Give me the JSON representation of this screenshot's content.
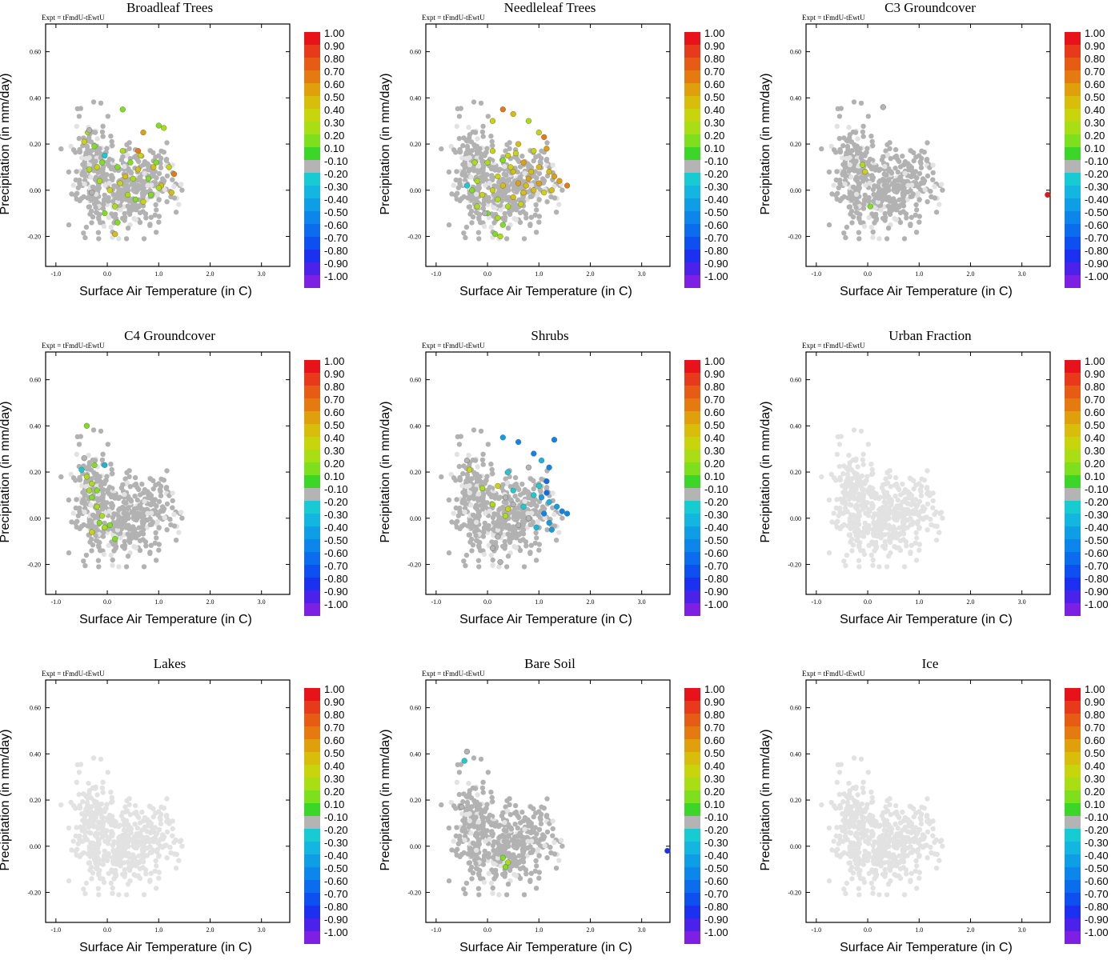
{
  "figure": {
    "experiment_label": "Expt = tFmdU-tEwtU",
    "xlabel": "Surface Air Temperature (in C)",
    "ylabel": "Precipitation (in mm/day)",
    "xticks": [
      {
        "value": -1.0,
        "label": "-1.0"
      },
      {
        "value": 0.0,
        "label": "0.0"
      },
      {
        "value": 1.0,
        "label": "1.0"
      },
      {
        "value": 2.0,
        "label": "2.0"
      },
      {
        "value": 3.0,
        "label": "3.0"
      }
    ],
    "yticks": [
      {
        "value": -0.2,
        "label": "-0.20"
      },
      {
        "value": 0.0,
        "label": "0.00"
      },
      {
        "value": 0.2,
        "label": "0.20"
      },
      {
        "value": 0.4,
        "label": "0.40"
      },
      {
        "value": 0.6,
        "label": "0.60"
      }
    ],
    "xlim": [
      -1.2,
      3.55
    ],
    "ylim": [
      -0.33,
      0.72
    ],
    "colorbar": {
      "labels": [
        "1.00",
        "0.90",
        "0.80",
        "0.70",
        "0.60",
        "0.50",
        "0.40",
        "0.30",
        "0.20",
        "0.10",
        "-0.10",
        "-0.20",
        "-0.30",
        "-0.40",
        "-0.50",
        "-0.60",
        "-0.70",
        "-0.80",
        "-0.90",
        "-1.00"
      ],
      "colors": [
        "#e8121a",
        "#e63a1a",
        "#e65c14",
        "#e47a10",
        "#e0a00c",
        "#d8be0a",
        "#c8d40c",
        "#aade14",
        "#7ee01c",
        "#3cd628",
        "#b4b4b4",
        "#18cbd3",
        "#12b6e0",
        "#0e9ee6",
        "#0c86ea",
        "#0b6ced",
        "#0e4ff0",
        "#1c30ef",
        "#4a22ea",
        "#7e1fe4"
      ]
    }
  },
  "chart_data": [
    {
      "type": "scatter",
      "title": "Broadleaf Trees",
      "xlabel": "Surface Air Temperature (in C)",
      "ylabel": "Precipitation (in mm/day)",
      "xlim": [
        -1.2,
        3.55
      ],
      "ylim": [
        -0.33,
        0.72
      ],
      "highlight": [
        [
          -0.45,
          0.21,
          0.3
        ],
        [
          -0.38,
          0.25,
          0.2
        ],
        [
          0.3,
          0.35,
          0.15
        ],
        [
          0.7,
          0.25,
          0.5
        ],
        [
          1.0,
          0.28,
          0.15
        ],
        [
          1.1,
          0.27,
          0.2
        ],
        [
          0.6,
          0.17,
          0.6
        ],
        [
          0.65,
          0.15,
          0.3
        ],
        [
          0.3,
          0.17,
          0.2
        ],
        [
          1.2,
          0.1,
          0.3
        ],
        [
          1.3,
          0.07,
          0.6
        ],
        [
          0.9,
          0.1,
          0.4
        ],
        [
          1.05,
          0.02,
          0.4
        ],
        [
          0.5,
          0.05,
          0.2
        ],
        [
          0.8,
          0.05,
          0.15
        ],
        [
          0.2,
          0.1,
          0.15
        ],
        [
          -0.1,
          0.12,
          0.15
        ],
        [
          -0.35,
          0.09,
          0.2
        ],
        [
          -0.15,
          0.04,
          0.2
        ],
        [
          0.05,
          0.0,
          0.3
        ],
        [
          0.4,
          -0.02,
          0.2
        ],
        [
          0.7,
          -0.05,
          0.3
        ],
        [
          1.25,
          -0.01,
          0.4
        ],
        [
          1.0,
          0.01,
          0.2
        ],
        [
          0.6,
          0.09,
          0.4
        ],
        [
          0.15,
          -0.07,
          0.2
        ],
        [
          -0.05,
          -0.1,
          0.15
        ],
        [
          0.2,
          -0.14,
          0.15
        ],
        [
          0.15,
          -0.19,
          0.4
        ],
        [
          0.45,
          0.12,
          0.15
        ],
        [
          0.85,
          -0.02,
          0.15
        ],
        [
          -0.35,
          0.26,
          -0.2
        ],
        [
          -0.05,
          0.15,
          -0.3
        ],
        [
          -0.3,
          -0.01,
          -0.2
        ],
        [
          -0.25,
          0.19,
          0.15
        ],
        [
          0.25,
          0.03,
          0.3
        ],
        [
          0.55,
          -0.04,
          0.15
        ],
        [
          0.95,
          0.12,
          0.15
        ],
        [
          0.35,
          0.06,
          0.4
        ],
        [
          -0.2,
          0.1,
          0.3
        ]
      ]
    },
    {
      "type": "scatter",
      "title": "Needleleaf Trees",
      "xlabel": "Surface Air Temperature (in C)",
      "ylabel": "Precipitation (in mm/day)",
      "xlim": [
        -1.2,
        3.55
      ],
      "ylim": [
        -0.33,
        0.72
      ],
      "highlight": [
        [
          0.3,
          0.35,
          0.6
        ],
        [
          0.5,
          0.33,
          0.4
        ],
        [
          0.1,
          0.3,
          0.3
        ],
        [
          0.8,
          0.3,
          0.2
        ],
        [
          1.1,
          0.23,
          0.6
        ],
        [
          1.0,
          0.25,
          0.3
        ],
        [
          0.6,
          0.2,
          0.4
        ],
        [
          1.15,
          0.18,
          0.5
        ],
        [
          0.9,
          0.17,
          0.3
        ],
        [
          0.4,
          0.15,
          0.3
        ],
        [
          0.7,
          0.12,
          0.5
        ],
        [
          1.0,
          0.1,
          0.4
        ],
        [
          1.2,
          0.08,
          0.4
        ],
        [
          1.4,
          0.04,
          0.5
        ],
        [
          1.55,
          0.02,
          0.6
        ],
        [
          1.3,
          0.06,
          0.5
        ],
        [
          0.5,
          0.08,
          0.4
        ],
        [
          0.2,
          0.06,
          0.3
        ],
        [
          0.8,
          0.05,
          0.5
        ],
        [
          1.0,
          0.03,
          0.5
        ],
        [
          0.6,
          0.03,
          0.5
        ],
        [
          0.3,
          0.02,
          0.4
        ],
        [
          0.9,
          0.0,
          0.4
        ],
        [
          0.1,
          0.0,
          0.3
        ],
        [
          -0.2,
          0.04,
          0.2
        ],
        [
          -0.3,
          0.0,
          0.15
        ],
        [
          -0.1,
          -0.02,
          0.3
        ],
        [
          0.2,
          -0.04,
          0.2
        ],
        [
          0.5,
          -0.03,
          0.4
        ],
        [
          0.7,
          -0.01,
          0.4
        ],
        [
          -0.2,
          -0.07,
          0.2
        ],
        [
          0.0,
          -0.1,
          0.15
        ],
        [
          0.2,
          -0.12,
          0.2
        ],
        [
          0.3,
          -0.15,
          0.15
        ],
        [
          0.15,
          -0.19,
          0.15
        ],
        [
          0.25,
          -0.2,
          0.2
        ],
        [
          -0.4,
          0.02,
          -0.3
        ],
        [
          -0.05,
          -0.1,
          -0.2
        ],
        [
          0.4,
          -0.07,
          0.2
        ],
        [
          0.65,
          -0.06,
          0.3
        ],
        [
          1.1,
          -0.01,
          0.3
        ],
        [
          1.25,
          0.0,
          0.4
        ],
        [
          0.0,
          0.12,
          0.2
        ],
        [
          0.3,
          0.13,
          0.15
        ],
        [
          0.55,
          0.16,
          0.3
        ],
        [
          0.85,
          0.08,
          0.4
        ],
        [
          -0.25,
          0.12,
          0.2
        ],
        [
          0.1,
          0.17,
          0.3
        ],
        [
          0.45,
          0.1,
          0.3
        ],
        [
          0.75,
          0.02,
          0.4
        ]
      ]
    },
    {
      "type": "scatter",
      "title": "C3 Groundcover",
      "xlabel": "Surface Air Temperature (in C)",
      "ylabel": "Precipitation (in mm/day)",
      "xlim": [
        -1.2,
        3.55
      ],
      "ylim": [
        -0.33,
        0.72
      ],
      "highlight": [
        [
          0.3,
          0.36,
          -0.2
        ],
        [
          -0.1,
          0.11,
          0.2
        ],
        [
          -0.05,
          0.08,
          0.3
        ],
        [
          0.05,
          -0.07,
          0.15
        ],
        [
          3.5,
          -0.02,
          0.9
        ]
      ]
    },
    {
      "type": "scatter",
      "title": "C4 Groundcover",
      "xlabel": "Surface Air Temperature (in C)",
      "ylabel": "Precipitation (in mm/day)",
      "xlim": [
        -1.2,
        3.55
      ],
      "ylim": [
        -0.33,
        0.72
      ],
      "highlight": [
        [
          -0.4,
          0.4,
          0.15
        ],
        [
          -0.45,
          0.26,
          -0.2
        ],
        [
          -0.5,
          0.21,
          -0.3
        ],
        [
          -0.4,
          0.18,
          0.2
        ],
        [
          -0.3,
          0.15,
          0.2
        ],
        [
          -0.25,
          0.23,
          0.15
        ],
        [
          -0.05,
          0.23,
          -0.4
        ],
        [
          -0.3,
          0.09,
          0.15
        ],
        [
          -0.2,
          0.05,
          0.2
        ],
        [
          -0.1,
          0.01,
          0.2
        ],
        [
          -0.15,
          -0.02,
          0.15
        ],
        [
          -0.05,
          -0.04,
          0.2
        ],
        [
          0.05,
          -0.03,
          0.15
        ],
        [
          -0.3,
          -0.06,
          0.3
        ],
        [
          0.15,
          -0.09,
          0.15
        ],
        [
          -0.35,
          0.12,
          0.2
        ],
        [
          -0.2,
          0.12,
          0.15
        ]
      ]
    },
    {
      "type": "scatter",
      "title": "Shrubs",
      "xlabel": "Surface Air Temperature (in C)",
      "ylabel": "Precipitation (in mm/day)",
      "xlim": [
        -1.2,
        3.55
      ],
      "ylim": [
        -0.33,
        0.72
      ],
      "highlight": [
        [
          0.3,
          0.35,
          -0.5
        ],
        [
          0.6,
          0.33,
          -0.6
        ],
        [
          0.9,
          0.28,
          -0.6
        ],
        [
          1.3,
          0.34,
          -0.6
        ],
        [
          1.05,
          0.25,
          -0.4
        ],
        [
          1.2,
          0.22,
          -0.6
        ],
        [
          0.8,
          0.22,
          -0.2
        ],
        [
          0.4,
          0.2,
          -0.3
        ],
        [
          1.15,
          0.16,
          -0.7
        ],
        [
          0.9,
          0.1,
          -0.3
        ],
        [
          1.05,
          0.09,
          -0.5
        ],
        [
          1.2,
          0.07,
          -0.4
        ],
        [
          1.35,
          0.05,
          -0.5
        ],
        [
          1.45,
          0.03,
          -0.6
        ],
        [
          1.55,
          0.02,
          -0.6
        ],
        [
          1.1,
          0.02,
          -0.6
        ],
        [
          1.2,
          -0.02,
          -0.5
        ],
        [
          1.25,
          -0.05,
          -0.5
        ],
        [
          0.95,
          -0.04,
          -0.4
        ],
        [
          0.7,
          0.05,
          -0.3
        ],
        [
          0.8,
          0.0,
          -0.2
        ],
        [
          0.6,
          -0.03,
          -0.2
        ],
        [
          0.5,
          0.06,
          -0.2
        ],
        [
          0.35,
          0.09,
          -0.2
        ],
        [
          0.2,
          -0.08,
          -0.2
        ],
        [
          0.1,
          -0.13,
          -0.2
        ],
        [
          0.25,
          -0.19,
          -0.2
        ],
        [
          -0.4,
          0.25,
          -0.2
        ],
        [
          -0.35,
          0.21,
          0.3
        ],
        [
          -0.1,
          0.13,
          0.2
        ],
        [
          0.2,
          0.14,
          0.3
        ],
        [
          0.35,
          0.01,
          0.2
        ],
        [
          0.4,
          0.04,
          0.3
        ],
        [
          0.1,
          0.06,
          0.2
        ],
        [
          1.0,
          0.14,
          -0.3
        ],
        [
          1.15,
          0.11,
          -0.7
        ],
        [
          0.5,
          0.12,
          -0.3
        ]
      ]
    },
    {
      "type": "scatter",
      "title": "Urban Fraction",
      "xlabel": "Surface Air Temperature (in C)",
      "ylabel": "Precipitation (in mm/day)",
      "xlim": [
        -1.2,
        3.55
      ],
      "ylim": [
        -0.33,
        0.72
      ],
      "highlight": []
    },
    {
      "type": "scatter",
      "title": "Lakes",
      "xlabel": "Surface Air Temperature (in C)",
      "ylabel": "Precipitation (in mm/day)",
      "xlim": [
        -1.2,
        3.55
      ],
      "ylim": [
        -0.33,
        0.72
      ],
      "highlight": []
    },
    {
      "type": "scatter",
      "title": "Bare Soil",
      "xlabel": "Surface Air Temperature (in C)",
      "ylabel": "Precipitation (in mm/day)",
      "xlim": [
        -1.2,
        3.55
      ],
      "ylim": [
        -0.33,
        0.72
      ],
      "highlight": [
        [
          -0.4,
          0.41,
          -0.2
        ],
        [
          -0.45,
          0.37,
          -0.3
        ],
        [
          -0.5,
          0.17,
          -0.2
        ],
        [
          0.3,
          -0.05,
          0.15
        ],
        [
          0.4,
          -0.07,
          0.2
        ],
        [
          0.35,
          -0.09,
          0.15
        ],
        [
          3.5,
          -0.02,
          -0.9
        ]
      ]
    },
    {
      "type": "scatter",
      "title": "Ice",
      "xlabel": "Surface Air Temperature (in C)",
      "ylabel": "Precipitation (in mm/day)",
      "xlim": [
        -1.2,
        3.55
      ],
      "ylim": [
        -0.33,
        0.72
      ],
      "highlight": []
    }
  ]
}
